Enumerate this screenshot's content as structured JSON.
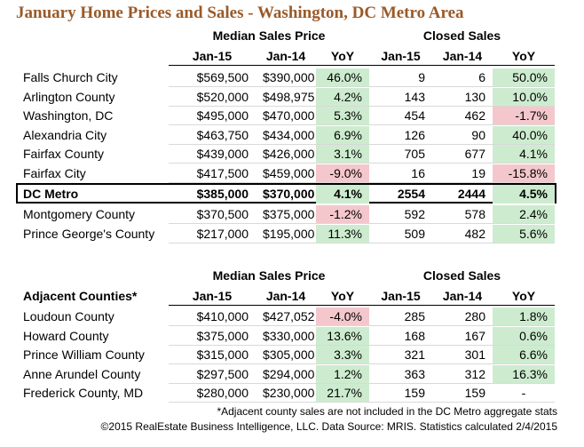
{
  "title": "January Home Prices and Sales - Washington, DC Metro Area",
  "table1": {
    "group_headers": [
      "Median Sales Price",
      "Closed Sales"
    ],
    "columns": [
      "Jan-15",
      "Jan-14",
      "YoY",
      "Jan-15",
      "Jan-14",
      "YoY"
    ],
    "rows": [
      [
        "Falls Church City",
        "$569,500",
        "$390,000",
        "46.0%",
        "9",
        "6",
        "50.0%"
      ],
      [
        "Arlington County",
        "$520,000",
        "$498,975",
        "4.2%",
        "143",
        "130",
        "10.0%"
      ],
      [
        "Washington, DC",
        "$495,000",
        "$470,000",
        "5.3%",
        "454",
        "462",
        "-1.7%"
      ],
      [
        "Alexandria City",
        "$463,750",
        "$434,000",
        "6.9%",
        "126",
        "90",
        "40.0%"
      ],
      [
        "Fairfax County",
        "$439,000",
        "$426,000",
        "3.1%",
        "705",
        "677",
        "4.1%"
      ],
      [
        "Fairfax City",
        "$417,500",
        "$459,000",
        "-9.0%",
        "16",
        "19",
        "-15.8%"
      ]
    ],
    "summary_row": [
      "DC Metro",
      "$385,000",
      "$370,000",
      "4.1%",
      "2554",
      "2444",
      "4.5%"
    ],
    "rows_after": [
      [
        "Montgomery County",
        "$370,500",
        "$375,000",
        "-1.2%",
        "592",
        "578",
        "2.4%"
      ],
      [
        "Prince George's County",
        "$217,000",
        "$195,000",
        "11.3%",
        "509",
        "482",
        "5.6%"
      ]
    ]
  },
  "table2": {
    "label": "Adjacent Counties*",
    "group_headers": [
      "Median Sales Price",
      "Closed Sales"
    ],
    "columns": [
      "Jan-15",
      "Jan-14",
      "YoY",
      "Jan-15",
      "Jan-14",
      "YoY"
    ],
    "rows": [
      [
        "Loudoun County",
        "$410,000",
        "$427,052",
        "-4.0%",
        "285",
        "280",
        "1.8%"
      ],
      [
        "Howard County",
        "$375,000",
        "$330,000",
        "13.6%",
        "168",
        "167",
        "0.6%"
      ],
      [
        "Prince William County",
        "$315,000",
        "$305,000",
        "3.3%",
        "321",
        "301",
        "6.6%"
      ],
      [
        "Anne Arundel County",
        "$297,500",
        "$294,000",
        "1.2%",
        "363",
        "312",
        "16.3%"
      ],
      [
        "Frederick County, MD",
        "$280,000",
        "$230,000",
        "21.7%",
        "159",
        "159",
        "-"
      ]
    ]
  },
  "notes": [
    "*Adjacent county sales are not included in the DC Metro aggregate stats",
    "©2015 RealEstate Business Intelligence, LLC. Data Source: MRIS. Statistics calculated 2/4/2015"
  ]
}
